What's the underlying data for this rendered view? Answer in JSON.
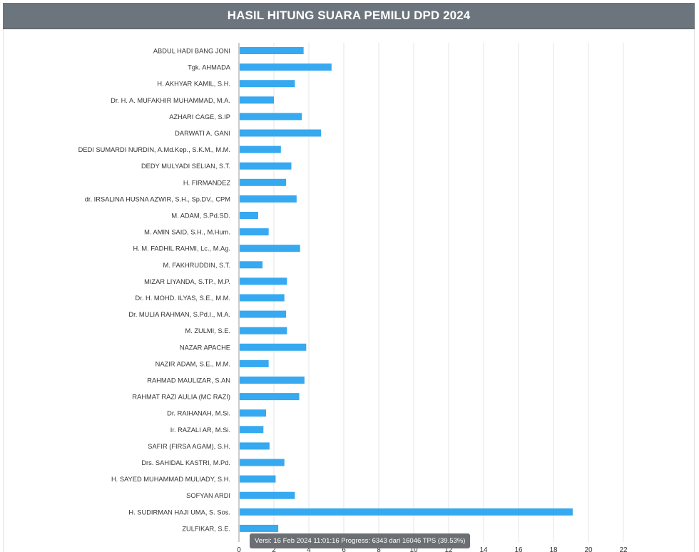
{
  "header": {
    "title": "HASIL HITUNG SUARA PEMILU DPD 2024"
  },
  "tooltip": {
    "text": "Versi: 16 Feb 2024 11:01:16 Progress: 6343 dari 16046 TPS (39.53%)"
  },
  "colors": {
    "bar": "#36a9f0",
    "header_bg": "#6c757d",
    "grid": "#e6e6e6",
    "tooltip_bg": "#6b6f73"
  },
  "chart_data": {
    "type": "bar",
    "orientation": "horizontal",
    "title": "HASIL HITUNG SUARA PEMILU DPD 2024",
    "xlim": [
      0,
      22
    ],
    "x_ticks": [
      0,
      2,
      4,
      6,
      8,
      10,
      12,
      14,
      16,
      18,
      20,
      22
    ],
    "grid": true,
    "categories": [
      "ABDUL HADI BANG JONI",
      "Tgk. AHMADA",
      "H. AKHYAR KAMIL, S.H.",
      "Dr. H. A. MUFAKHIR MUHAMMAD, M.A.",
      "AZHARI CAGE, S.IP",
      "DARWATI A. GANI",
      "DEDI SUMARDI NURDIN, A.Md.Kep., S.K.M., M.M.",
      "DEDY MULYADI SELIAN, S.T.",
      "H. FIRMANDEZ",
      "dr. IRSALINA HUSNA AZWIR, S.H., Sp.DV., CPM",
      "M. ADAM, S.Pd.SD.",
      "M. AMIN SAID, S.H., M.Hum.",
      "H. M. FADHIL RAHMI, Lc., M.Ag.",
      "M. FAKHRUDDIN, S.T.",
      "MIZAR LIYANDA, S.TP., M.P.",
      "Dr. H. MOHD. ILYAS, S.E., M.M.",
      "Dr. MULIA RAHMAN, S.Pd.I., M.A.",
      "M. ZULMI, S.E.",
      "NAZAR APACHE",
      "NAZIR ADAM, S.E., M.M.",
      "RAHMAD MAULIZAR, S.AN",
      "RAHMAT RAZI AULIA (MC RAZI)",
      "Dr. RAIHANAH, M.Si.",
      "Ir. RAZALI AR, M.Si.",
      "SAFIR (FIRSA AGAM), S.H.",
      "Drs. SAHIDAL KASTRI, M.Pd.",
      "H. SAYED MUHAMMAD MULIADY, S.H.",
      "SOFYAN ARDI",
      "H. SUDIRMAN HAJI UMA, S. Sos.",
      "ZULFIKAR, S.E."
    ],
    "values": [
      3.7,
      5.3,
      3.2,
      2.0,
      3.6,
      4.7,
      2.4,
      3.0,
      2.7,
      3.3,
      1.1,
      1.7,
      3.5,
      1.35,
      2.75,
      2.6,
      2.7,
      2.75,
      3.85,
      1.7,
      3.75,
      3.45,
      1.55,
      1.4,
      1.75,
      2.6,
      2.1,
      3.2,
      19.1,
      2.25
    ]
  }
}
